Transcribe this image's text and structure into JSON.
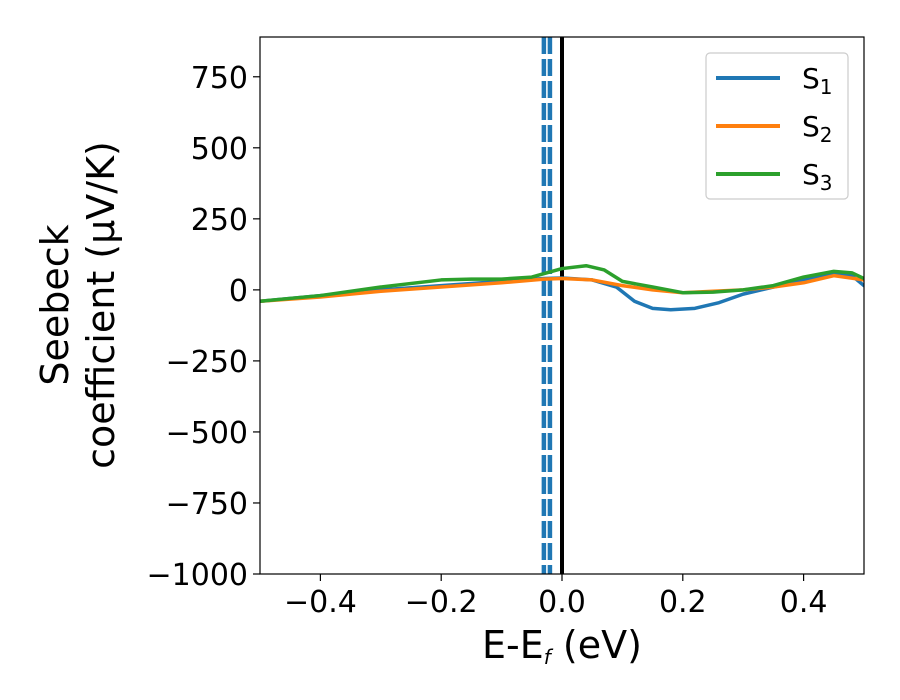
{
  "chart_data": {
    "type": "line",
    "title": "",
    "xlabel": {
      "base": "E-E",
      "sub": "f",
      "tail": " (eV)"
    },
    "ylabel": {
      "line1": "Seebeck",
      "line2": "coefficient  (μV/K)"
    },
    "xlim": [
      -0.5,
      0.5
    ],
    "ylim": [
      -1000,
      890
    ],
    "xticks": [
      -0.4,
      -0.2,
      0.0,
      0.2,
      0.4
    ],
    "xtick_labels": [
      "−0.4",
      "−0.2",
      "0.0",
      "0.2",
      "0.4"
    ],
    "yticks": [
      -1000,
      -750,
      -500,
      -250,
      0,
      250,
      500,
      750
    ],
    "ytick_labels": [
      "−1000",
      "−750",
      "−500",
      "−250",
      "0",
      "250",
      "500",
      "750"
    ],
    "legend_position": "top-right",
    "series": [
      {
        "name": "S",
        "sub": "1",
        "color": "#1f77b4",
        "x": [
          -0.5,
          -0.4,
          -0.3,
          -0.2,
          -0.1,
          -0.03,
          0.0,
          0.05,
          0.09,
          0.12,
          0.15,
          0.18,
          0.22,
          0.26,
          0.3,
          0.35,
          0.4,
          0.45,
          0.48,
          0.5
        ],
        "y": [
          -40,
          -20,
          0,
          15,
          30,
          40,
          42,
          35,
          10,
          -40,
          -65,
          -70,
          -65,
          -45,
          -15,
          10,
          35,
          55,
          50,
          15
        ]
      },
      {
        "name": "S",
        "sub": "2",
        "color": "#ff7f0e",
        "x": [
          -0.5,
          -0.4,
          -0.3,
          -0.2,
          -0.1,
          -0.03,
          0.0,
          0.05,
          0.1,
          0.15,
          0.2,
          0.25,
          0.3,
          0.35,
          0.4,
          0.45,
          0.5
        ],
        "y": [
          -40,
          -25,
          -5,
          10,
          25,
          38,
          40,
          35,
          15,
          0,
          -10,
          -5,
          0,
          10,
          25,
          50,
          35
        ]
      },
      {
        "name": "S",
        "sub": "3",
        "color": "#2ca02c",
        "x": [
          -0.5,
          -0.4,
          -0.3,
          -0.2,
          -0.15,
          -0.1,
          -0.05,
          0.0,
          0.04,
          0.07,
          0.1,
          0.15,
          0.2,
          0.25,
          0.3,
          0.35,
          0.4,
          0.45,
          0.48,
          0.5
        ],
        "y": [
          -40,
          -20,
          10,
          35,
          38,
          38,
          45,
          75,
          85,
          70,
          30,
          10,
          -10,
          -8,
          0,
          15,
          45,
          65,
          60,
          40
        ]
      }
    ],
    "vertical_lines": [
      {
        "x": -0.03,
        "style": "dashed",
        "color": "#1f77b4"
      },
      {
        "x": -0.02,
        "style": "dashed",
        "color": "#1f77b4"
      },
      {
        "x": 0.0,
        "style": "solid",
        "color": "#000000"
      }
    ]
  }
}
